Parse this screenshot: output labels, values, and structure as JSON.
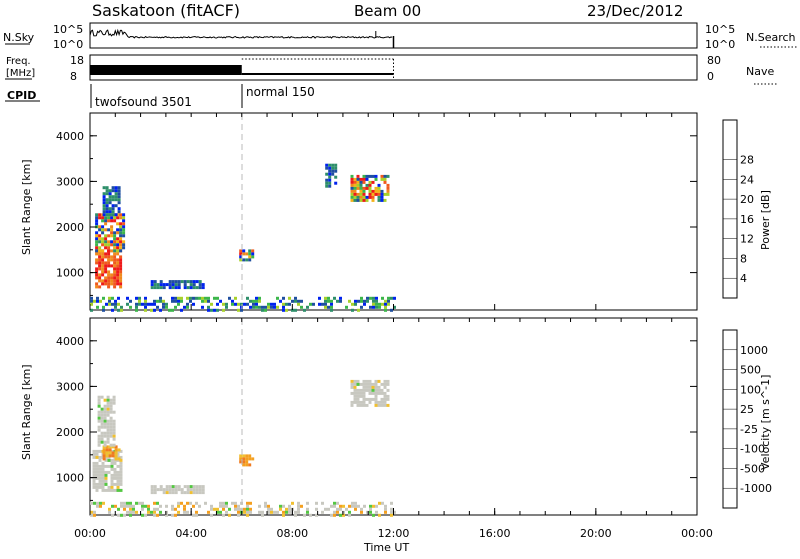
{
  "header": {
    "title": "Saskatoon (fitACF)",
    "beam": "Beam 00",
    "date": "23/Dec/2012"
  },
  "panels": {
    "nsky": {
      "label": "N.Sky",
      "right_label": "N.Search",
      "ticks_left": [
        "10^5",
        "10^0"
      ],
      "ticks_right": [
        "10^5",
        "10^0"
      ]
    },
    "freq": {
      "label_line1": "Freq.",
      "label_line2": "[MHz]",
      "ticks_left": [
        "18",
        "8"
      ],
      "ticks_right": [
        "80",
        "0"
      ],
      "right_label": "Nave"
    },
    "cpid": {
      "label": "CPID",
      "programs": [
        {
          "name": "twofsound 3501",
          "start_hour": 0,
          "end_hour": 6
        },
        {
          "name": "normal 150",
          "start_hour": 6,
          "end_hour": 12
        }
      ]
    }
  },
  "colors": {
    "power": [
      "#0022ee",
      "#1f4fa0",
      "#2e8f6a",
      "#3cb64a",
      "#a8d12a",
      "#f4b31a",
      "#f08a1e",
      "#f05a1e",
      "#ee1a1a"
    ],
    "velocity": [
      "#1f3fd8",
      "#2a5fa6",
      "#2e8f6a",
      "#54c742",
      "#c8c8c0",
      "#f0c030",
      "#f4a020",
      "#f07a20",
      "#ee1a1a"
    ],
    "grey_scatter": "#c8c8c0"
  },
  "chart_data": [
    {
      "type": "heatmap",
      "name": "power",
      "ylabel": "Slant Range [km]",
      "y_ticks": [
        1000,
        2000,
        3000,
        4000
      ],
      "ylim": [
        180,
        4500
      ],
      "colorbar": {
        "label": "Power [dB]",
        "ticks": [
          "4",
          "8",
          "12",
          "16",
          "20",
          "24",
          "28"
        ],
        "range": [
          0,
          30
        ]
      },
      "regions": [
        {
          "t": [
            0.2,
            1.2
          ],
          "r": [
            700,
            1500
          ],
          "level": "high"
        },
        {
          "t": [
            0.2,
            1.3
          ],
          "r": [
            1500,
            2300
          ],
          "level": "mixed"
        },
        {
          "t": [
            0.5,
            1.1
          ],
          "r": [
            2300,
            2900
          ],
          "level": "low"
        },
        {
          "t": [
            2.4,
            4.5
          ],
          "r": [
            650,
            820
          ],
          "level": "low"
        },
        {
          "t": [
            5.9,
            6.4
          ],
          "r": [
            1300,
            1500
          ],
          "level": "mixed"
        },
        {
          "t": [
            10.3,
            11.8
          ],
          "r": [
            2600,
            3150
          ],
          "level": "mixed"
        },
        {
          "t": [
            9.3,
            9.7
          ],
          "r": [
            2900,
            3400
          ],
          "level": "low"
        },
        {
          "t": [
            0,
            12
          ],
          "r": [
            180,
            450
          ],
          "level": "scatter"
        }
      ]
    },
    {
      "type": "heatmap",
      "name": "velocity",
      "ylabel": "Slant Range [km]",
      "y_ticks": [
        1000,
        2000,
        3000,
        4000
      ],
      "ylim": [
        180,
        4500
      ],
      "colorbar": {
        "label": "Velocity [m s^-1]",
        "ticks": [
          "1000",
          "500",
          "100",
          "25",
          "-25",
          "-100",
          "-500",
          "-1000"
        ],
        "range": [
          -1200,
          1200
        ]
      },
      "regions": [
        {
          "t": [
            0.1,
            1.2
          ],
          "r": [
            700,
            1600
          ],
          "level": "grey"
        },
        {
          "t": [
            0.5,
            1.2
          ],
          "r": [
            1400,
            1700
          ],
          "level": "orange"
        },
        {
          "t": [
            0.3,
            1.0
          ],
          "r": [
            1700,
            2800
          ],
          "level": "grey"
        },
        {
          "t": [
            2.4,
            4.5
          ],
          "r": [
            650,
            820
          ],
          "level": "grey"
        },
        {
          "t": [
            5.9,
            6.4
          ],
          "r": [
            1300,
            1500
          ],
          "level": "orange"
        },
        {
          "t": [
            10.3,
            11.8
          ],
          "r": [
            2600,
            3150
          ],
          "level": "grey"
        },
        {
          "t": [
            0,
            12
          ],
          "r": [
            180,
            450
          ],
          "level": "scatter"
        }
      ]
    }
  ],
  "x_axis": {
    "label": "Time UT",
    "ticks": [
      "00:00",
      "04:00",
      "08:00",
      "12:00",
      "16:00",
      "20:00",
      "00:00"
    ],
    "range_hours": [
      0,
      24
    ],
    "data_end_hour": 12,
    "program_change_hour": 6
  }
}
